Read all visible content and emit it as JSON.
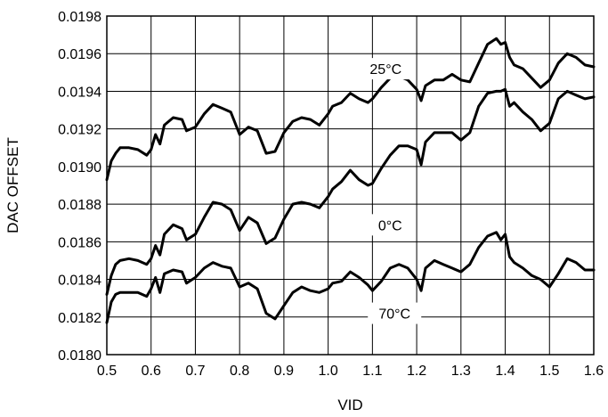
{
  "chart_data": {
    "type": "line",
    "title": "",
    "xlabel": "VID",
    "ylabel": "DAC OFFSET",
    "xlim": [
      0.5,
      1.6
    ],
    "ylim": [
      0.018,
      0.0198
    ],
    "x_ticks": [
      "0.5",
      "0.6",
      "0.7",
      "0.8",
      "0.9",
      "1.0",
      "1.1",
      "1.2",
      "1.3",
      "1.4",
      "1.5",
      "1.6"
    ],
    "y_ticks": [
      "0.0180",
      "0.0182",
      "0.0184",
      "0.0186",
      "0.0188",
      "0.0190",
      "0.0192",
      "0.0194",
      "0.0196",
      "0.0198"
    ],
    "grid": true,
    "line_color": "#000000",
    "series": [
      {
        "name": "25°C",
        "x": [
          0.5,
          0.51,
          0.52,
          0.53,
          0.55,
          0.57,
          0.59,
          0.6,
          0.61,
          0.62,
          0.63,
          0.65,
          0.67,
          0.68,
          0.7,
          0.72,
          0.74,
          0.76,
          0.78,
          0.8,
          0.82,
          0.84,
          0.86,
          0.88,
          0.9,
          0.92,
          0.94,
          0.96,
          0.98,
          1.0,
          1.01,
          1.03,
          1.05,
          1.07,
          1.09,
          1.1,
          1.12,
          1.14,
          1.16,
          1.18,
          1.2,
          1.21,
          1.22,
          1.24,
          1.26,
          1.28,
          1.3,
          1.32,
          1.34,
          1.36,
          1.38,
          1.39,
          1.4,
          1.41,
          1.42,
          1.44,
          1.46,
          1.48,
          1.5,
          1.52,
          1.54,
          1.56,
          1.58,
          1.6
        ],
        "y": [
          0.01893,
          0.01903,
          0.01907,
          0.0191,
          0.0191,
          0.01909,
          0.01906,
          0.01909,
          0.01917,
          0.01912,
          0.01922,
          0.01926,
          0.01925,
          0.01919,
          0.01921,
          0.01928,
          0.01933,
          0.01931,
          0.01929,
          0.01917,
          0.01921,
          0.01919,
          0.01907,
          0.01908,
          0.01918,
          0.01924,
          0.01926,
          0.01925,
          0.01922,
          0.01928,
          0.01932,
          0.01934,
          0.01939,
          0.01936,
          0.01934,
          0.01936,
          0.01942,
          0.01947,
          0.01948,
          0.01946,
          0.01941,
          0.01935,
          0.01943,
          0.01946,
          0.01946,
          0.01949,
          0.01946,
          0.01945,
          0.01955,
          0.01965,
          0.01968,
          0.01965,
          0.01966,
          0.01958,
          0.01954,
          0.01952,
          0.01947,
          0.01942,
          0.01946,
          0.01955,
          0.0196,
          0.01958,
          0.01954,
          0.01953
        ]
      },
      {
        "name": "0°C",
        "x": [
          0.5,
          0.51,
          0.52,
          0.53,
          0.55,
          0.57,
          0.59,
          0.6,
          0.61,
          0.62,
          0.63,
          0.65,
          0.67,
          0.68,
          0.7,
          0.72,
          0.74,
          0.76,
          0.78,
          0.8,
          0.82,
          0.84,
          0.86,
          0.88,
          0.9,
          0.92,
          0.94,
          0.96,
          0.98,
          1.0,
          1.01,
          1.03,
          1.05,
          1.07,
          1.09,
          1.1,
          1.12,
          1.14,
          1.16,
          1.18,
          1.2,
          1.21,
          1.22,
          1.24,
          1.26,
          1.28,
          1.3,
          1.32,
          1.34,
          1.36,
          1.38,
          1.39,
          1.4,
          1.41,
          1.42,
          1.44,
          1.46,
          1.48,
          1.5,
          1.52,
          1.54,
          1.56,
          1.58,
          1.6
        ],
        "y": [
          0.01832,
          0.01842,
          0.01848,
          0.0185,
          0.01851,
          0.0185,
          0.01848,
          0.01851,
          0.01858,
          0.01853,
          0.01864,
          0.01869,
          0.01867,
          0.01861,
          0.01864,
          0.01873,
          0.01881,
          0.0188,
          0.01877,
          0.01866,
          0.01873,
          0.0187,
          0.01859,
          0.01862,
          0.01872,
          0.0188,
          0.01881,
          0.0188,
          0.01878,
          0.01884,
          0.01888,
          0.01892,
          0.01898,
          0.01893,
          0.0189,
          0.01891,
          0.01899,
          0.01906,
          0.01911,
          0.01911,
          0.01909,
          0.01901,
          0.01913,
          0.01918,
          0.01918,
          0.01918,
          0.01914,
          0.01918,
          0.01932,
          0.01939,
          0.0194,
          0.0194,
          0.01941,
          0.01932,
          0.01934,
          0.01929,
          0.01925,
          0.01919,
          0.01923,
          0.01936,
          0.0194,
          0.01938,
          0.01936,
          0.01937
        ]
      },
      {
        "name": "70°C",
        "x": [
          0.5,
          0.51,
          0.52,
          0.53,
          0.55,
          0.57,
          0.59,
          0.6,
          0.61,
          0.62,
          0.63,
          0.65,
          0.67,
          0.68,
          0.7,
          0.72,
          0.74,
          0.76,
          0.78,
          0.8,
          0.82,
          0.84,
          0.86,
          0.88,
          0.9,
          0.92,
          0.94,
          0.96,
          0.98,
          1.0,
          1.01,
          1.03,
          1.05,
          1.07,
          1.09,
          1.1,
          1.12,
          1.14,
          1.16,
          1.18,
          1.2,
          1.21,
          1.22,
          1.24,
          1.26,
          1.28,
          1.3,
          1.32,
          1.34,
          1.36,
          1.38,
          1.39,
          1.4,
          1.41,
          1.42,
          1.44,
          1.46,
          1.48,
          1.5,
          1.52,
          1.54,
          1.56,
          1.58,
          1.6
        ],
        "y": [
          0.01817,
          0.01828,
          0.01832,
          0.01833,
          0.01833,
          0.01833,
          0.01831,
          0.01835,
          0.01841,
          0.01833,
          0.01843,
          0.01845,
          0.01844,
          0.01838,
          0.01841,
          0.01846,
          0.01849,
          0.01847,
          0.01846,
          0.01836,
          0.01838,
          0.01835,
          0.01822,
          0.01819,
          0.01826,
          0.01833,
          0.01836,
          0.01834,
          0.01833,
          0.01835,
          0.01838,
          0.01839,
          0.01844,
          0.01841,
          0.01837,
          0.01834,
          0.01839,
          0.01846,
          0.01848,
          0.01846,
          0.0184,
          0.01834,
          0.01846,
          0.0185,
          0.01848,
          0.01846,
          0.01844,
          0.01848,
          0.01857,
          0.01863,
          0.01865,
          0.01861,
          0.01864,
          0.01852,
          0.01849,
          0.01846,
          0.01842,
          0.0184,
          0.01836,
          0.01843,
          0.01851,
          0.01849,
          0.01845,
          0.01845
        ]
      }
    ],
    "annotations": [
      {
        "text": "25°C",
        "series": "25°C",
        "x": 1.13,
        "y": 0.01952
      },
      {
        "text": "0°C",
        "series": "0°C",
        "x": 1.14,
        "y": 0.01869
      },
      {
        "text": "70°C",
        "series": "70°C",
        "x": 1.15,
        "y": 0.01822
      }
    ]
  }
}
